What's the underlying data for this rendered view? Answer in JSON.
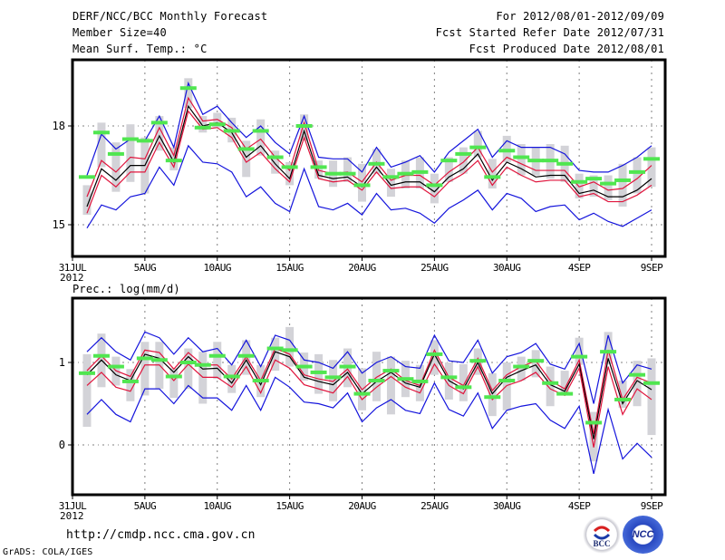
{
  "header": {
    "title": "DERF/NCC/BCC Monthly Forecast",
    "member_size": "Member Size=40",
    "variable_label": "Mean Surf. Temp.: °C",
    "period": "For 2012/08/01-2012/09/09",
    "started_refer_date": "Fcst Started Refer Date 2012/07/31",
    "produced_date": "Fcst Produced Date 2012/08/01"
  },
  "footer": {
    "url": "http://cmdp.ncc.cma.gov.cn",
    "grads_credit": "GrADS: COLA/IGES",
    "logo_bcc": "BCC",
    "logo_ncc": "NCC"
  },
  "colors": {
    "ensemble_mean": "#000000",
    "spread_inner": "#e0143c",
    "spread_outer": "#1414dc",
    "box": "#d3d3d8",
    "median_bar": "#50e650",
    "grid": "#808080"
  },
  "chart_data": [
    {
      "type": "line",
      "title": "Mean Surf. Temp.: °C",
      "x_tick_labels": [
        "31JUL",
        "5AUG",
        "10AUG",
        "15AUG",
        "20AUG",
        "25AUG",
        "30AUG",
        "4SEP",
        "9SEP"
      ],
      "x_tick_days": [
        0,
        5,
        10,
        15,
        20,
        25,
        30,
        35,
        40
      ],
      "x_sub_label": "2012",
      "ylim": [
        13.9,
        19.85
      ],
      "y_ticks": [
        15,
        18
      ],
      "y_tick_labels": [
        "15",
        "18"
      ],
      "grid": true,
      "days": [
        1,
        2,
        3,
        4,
        5,
        6,
        7,
        8,
        9,
        10,
        11,
        12,
        13,
        14,
        15,
        16,
        17,
        18,
        19,
        20,
        21,
        22,
        23,
        24,
        25,
        26,
        27,
        28,
        29,
        30,
        31,
        32,
        33,
        34,
        35,
        36,
        37,
        38,
        39,
        40
      ],
      "series": [
        {
          "name": "outer-upper",
          "color_key": "spread_outer",
          "values": [
            16.5,
            17.75,
            17.3,
            17.6,
            17.55,
            18.3,
            17.35,
            19.3,
            18.35,
            18.6,
            18.1,
            17.65,
            18.0,
            17.5,
            17.15,
            18.3,
            17.05,
            17.0,
            17.0,
            16.6,
            17.35,
            16.75,
            16.9,
            17.1,
            16.6,
            17.2,
            17.55,
            17.9,
            17.05,
            17.55,
            17.35,
            17.35,
            17.35,
            17.15,
            16.65,
            16.6,
            16.6,
            16.8,
            17.05,
            17.4
          ]
        },
        {
          "name": "inner-upper",
          "color_key": "spread_inner",
          "values": [
            15.85,
            16.95,
            16.6,
            17.05,
            17.0,
            17.95,
            17.1,
            18.85,
            18.15,
            18.2,
            17.95,
            17.3,
            17.6,
            17.05,
            16.65,
            18.1,
            16.65,
            16.55,
            16.6,
            16.3,
            16.9,
            16.35,
            16.5,
            16.5,
            16.2,
            16.6,
            16.9,
            17.35,
            16.6,
            17.05,
            16.85,
            16.65,
            16.65,
            16.65,
            16.15,
            16.3,
            16.05,
            16.1,
            16.4,
            16.8
          ]
        },
        {
          "name": "ensemble-mean",
          "color_key": "ensemble_mean",
          "values": [
            15.55,
            16.7,
            16.35,
            16.8,
            16.8,
            17.7,
            16.9,
            18.6,
            18.0,
            18.1,
            17.8,
            17.05,
            17.4,
            16.85,
            16.4,
            17.85,
            16.5,
            16.4,
            16.45,
            16.15,
            16.75,
            16.2,
            16.3,
            16.3,
            16.0,
            16.45,
            16.7,
            17.15,
            16.35,
            16.9,
            16.7,
            16.45,
            16.5,
            16.5,
            15.95,
            16.05,
            15.85,
            15.85,
            16.05,
            16.4
          ]
        },
        {
          "name": "inner-lower",
          "color_key": "spread_inner",
          "values": [
            15.35,
            16.5,
            16.15,
            16.6,
            16.6,
            17.5,
            16.75,
            18.45,
            17.9,
            17.95,
            17.65,
            16.9,
            17.2,
            16.7,
            16.3,
            17.65,
            16.4,
            16.3,
            16.35,
            16.05,
            16.6,
            16.1,
            16.15,
            16.15,
            15.85,
            16.3,
            16.55,
            16.95,
            16.2,
            16.75,
            16.5,
            16.3,
            16.35,
            16.35,
            15.85,
            15.95,
            15.7,
            15.7,
            15.9,
            16.2
          ]
        },
        {
          "name": "outer-lower",
          "color_key": "spread_outer",
          "values": [
            14.9,
            15.6,
            15.45,
            15.85,
            15.95,
            16.75,
            16.2,
            17.4,
            16.9,
            16.85,
            16.6,
            15.85,
            16.15,
            15.65,
            15.4,
            16.7,
            15.55,
            15.45,
            15.65,
            15.3,
            15.95,
            15.45,
            15.5,
            15.35,
            15.05,
            15.5,
            15.75,
            16.05,
            15.45,
            15.95,
            15.8,
            15.4,
            15.55,
            15.6,
            15.15,
            15.35,
            15.1,
            14.95,
            15.2,
            15.45
          ]
        }
      ],
      "boxes": {
        "low": [
          15.3,
          16.75,
          16.0,
          16.3,
          15.95,
          17.25,
          16.65,
          18.55,
          17.8,
          17.95,
          17.5,
          16.45,
          17.1,
          16.55,
          16.2,
          17.55,
          16.4,
          16.15,
          16.3,
          15.7,
          16.55,
          15.85,
          16.1,
          16.1,
          15.65,
          16.3,
          16.55,
          17.05,
          16.1,
          16.9,
          16.5,
          16.5,
          16.4,
          16.3,
          15.8,
          15.85,
          15.75,
          15.55,
          15.95,
          16.15
        ],
        "high": [
          16.2,
          18.1,
          17.5,
          18.05,
          17.65,
          18.3,
          17.35,
          19.45,
          18.3,
          18.4,
          18.25,
          17.55,
          18.2,
          17.25,
          16.9,
          18.35,
          16.95,
          16.95,
          17.05,
          16.85,
          17.3,
          16.7,
          16.95,
          17.05,
          16.55,
          17.05,
          17.35,
          17.85,
          17.0,
          17.7,
          17.45,
          17.35,
          17.45,
          17.4,
          16.55,
          16.5,
          16.5,
          16.85,
          17.05,
          17.35
        ],
        "median": [
          16.45,
          17.8,
          17.15,
          17.6,
          17.55,
          18.1,
          16.95,
          19.15,
          17.95,
          18.05,
          17.85,
          17.3,
          17.85,
          17.05,
          16.75,
          18.0,
          16.75,
          16.55,
          16.55,
          16.2,
          16.85,
          16.45,
          16.55,
          16.6,
          16.2,
          16.95,
          17.15,
          17.35,
          16.45,
          17.25,
          17.05,
          16.95,
          16.95,
          16.85,
          16.3,
          16.4,
          16.25,
          16.35,
          16.6,
          17.0
        ]
      }
    },
    {
      "type": "line",
      "title": "Prec.: log(mm/d)",
      "x_tick_labels": [
        "31JUL",
        "5AUG",
        "10AUG",
        "15AUG",
        "20AUG",
        "25AUG",
        "30AUG",
        "4SEP",
        "9SEP"
      ],
      "x_tick_days": [
        0,
        5,
        10,
        15,
        20,
        25,
        30,
        35,
        40
      ],
      "x_sub_label": "2012",
      "ylim": [
        -0.6,
        1.8
      ],
      "y_ticks": [
        0,
        1
      ],
      "y_tick_labels": [
        "0",
        "1"
      ],
      "grid": true,
      "days": [
        1,
        2,
        3,
        4,
        5,
        6,
        7,
        8,
        9,
        10,
        11,
        12,
        13,
        14,
        15,
        16,
        17,
        18,
        19,
        20,
        21,
        22,
        23,
        24,
        25,
        26,
        27,
        28,
        29,
        30,
        31,
        32,
        33,
        34,
        35,
        36,
        37,
        38,
        39,
        40
      ],
      "series": [
        {
          "name": "outer-upper",
          "color_key": "spread_outer",
          "values": [
            1.13,
            1.3,
            1.13,
            1.03,
            1.37,
            1.3,
            1.1,
            1.3,
            1.13,
            1.17,
            0.97,
            1.27,
            0.95,
            1.33,
            1.27,
            1.03,
            1.0,
            0.93,
            1.13,
            0.87,
            1.0,
            1.07,
            0.95,
            0.93,
            1.33,
            1.02,
            1.0,
            1.27,
            0.87,
            1.07,
            1.12,
            1.23,
            0.98,
            0.92,
            1.23,
            0.5,
            1.33,
            0.75,
            0.97,
            0.92
          ]
        },
        {
          "name": "inner-upper",
          "color_key": "spread_inner",
          "values": [
            0.9,
            1.08,
            0.9,
            0.83,
            1.15,
            1.12,
            0.92,
            1.12,
            0.97,
            0.97,
            0.8,
            1.07,
            0.78,
            1.17,
            1.1,
            0.85,
            0.8,
            0.77,
            0.92,
            0.67,
            0.82,
            0.92,
            0.78,
            0.72,
            1.15,
            0.82,
            0.72,
            1.05,
            0.66,
            0.85,
            0.95,
            1.02,
            0.78,
            0.68,
            1.03,
            0.13,
            1.15,
            0.55,
            0.82,
            0.75
          ]
        },
        {
          "name": "ensemble-mean",
          "color_key": "ensemble_mean",
          "values": [
            0.85,
            1.03,
            0.85,
            0.78,
            1.1,
            1.05,
            0.88,
            1.07,
            0.92,
            0.93,
            0.75,
            1.03,
            0.73,
            1.13,
            1.07,
            0.82,
            0.77,
            0.73,
            0.88,
            0.62,
            0.77,
            0.88,
            0.75,
            0.7,
            1.1,
            0.78,
            0.68,
            1.0,
            0.62,
            0.82,
            0.9,
            0.97,
            0.73,
            0.65,
            0.98,
            0.07,
            1.05,
            0.5,
            0.78,
            0.67
          ]
        },
        {
          "name": "inner-lower",
          "color_key": "spread_inner",
          "values": [
            0.72,
            0.88,
            0.7,
            0.65,
            0.97,
            0.97,
            0.78,
            0.98,
            0.82,
            0.82,
            0.7,
            0.95,
            0.63,
            1.03,
            0.93,
            0.73,
            0.68,
            0.63,
            0.83,
            0.55,
            0.7,
            0.83,
            0.7,
            0.63,
            0.98,
            0.72,
            0.62,
            0.95,
            0.55,
            0.72,
            0.78,
            0.88,
            0.68,
            0.6,
            0.93,
            -0.03,
            0.95,
            0.37,
            0.68,
            0.55
          ]
        },
        {
          "name": "outer-lower",
          "color_key": "spread_outer",
          "values": [
            0.37,
            0.55,
            0.37,
            0.28,
            0.68,
            0.68,
            0.5,
            0.72,
            0.57,
            0.57,
            0.42,
            0.72,
            0.42,
            0.82,
            0.7,
            0.52,
            0.5,
            0.45,
            0.63,
            0.28,
            0.45,
            0.55,
            0.42,
            0.38,
            0.75,
            0.43,
            0.35,
            0.63,
            0.2,
            0.42,
            0.47,
            0.5,
            0.3,
            0.2,
            0.47,
            -0.35,
            0.43,
            -0.17,
            0.02,
            -0.15
          ]
        },
        {
          "name": "median-points",
          "color_key": "median_bar",
          "values": []
        }
      ],
      "boxes": {
        "low": [
          0.22,
          0.7,
          0.72,
          0.53,
          0.6,
          0.68,
          0.57,
          0.68,
          0.5,
          0.8,
          0.63,
          0.85,
          0.58,
          0.9,
          0.95,
          0.78,
          0.62,
          0.53,
          0.7,
          0.42,
          0.53,
          0.37,
          0.58,
          0.53,
          0.85,
          0.55,
          0.53,
          0.85,
          0.35,
          0.42,
          0.78,
          0.82,
          0.47,
          0.63,
          0.97,
          -0.2,
          0.98,
          0.45,
          0.47,
          0.12
        ],
        "high": [
          1.1,
          1.35,
          1.07,
          0.92,
          1.25,
          1.25,
          0.93,
          1.17,
          1.13,
          1.25,
          0.97,
          1.27,
          0.97,
          1.3,
          1.43,
          1.12,
          1.1,
          1.03,
          1.17,
          0.93,
          1.13,
          1.07,
          1.02,
          0.97,
          1.27,
          1.0,
          0.98,
          1.17,
          0.87,
          1.0,
          1.07,
          1.15,
          0.95,
          0.9,
          1.3,
          0.4,
          1.37,
          0.78,
          1.02,
          1.05
        ]
      },
      "medians": [
        0.87,
        1.08,
        0.95,
        0.77,
        1.05,
        1.03,
        0.83,
        1.0,
        0.97,
        1.08,
        0.83,
        1.08,
        0.78,
        1.17,
        1.15,
        0.95,
        0.88,
        0.82,
        0.95,
        0.62,
        0.78,
        0.9,
        0.8,
        0.77,
        1.1,
        0.82,
        0.7,
        1.02,
        0.58,
        0.78,
        0.95,
        1.02,
        0.75,
        0.62,
        1.07,
        0.27,
        1.13,
        0.55,
        0.85,
        0.75
      ]
    }
  ]
}
